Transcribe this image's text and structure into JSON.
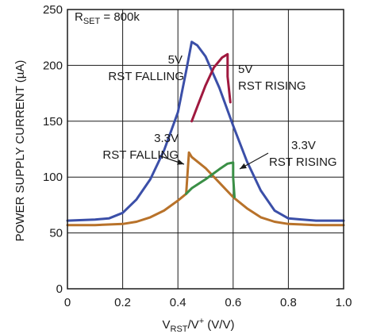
{
  "chart_data": {
    "type": "line",
    "xlabel": {
      "main": "V",
      "sub": "RST",
      "mid": "/V",
      "sup": "+",
      "tail": " (V/V)"
    },
    "ylabel": "POWER SUPPLY CURRENT (µA)",
    "xlim": [
      0,
      1.0
    ],
    "ylim": [
      0,
      250
    ],
    "x_ticks": [
      0,
      0.2,
      0.4,
      0.6,
      0.8,
      1.0
    ],
    "x_tick_labels": [
      "0",
      "0.2",
      "0.4",
      "0.6",
      "0.8",
      "1.0"
    ],
    "y_ticks": [
      0,
      50,
      100,
      150,
      200,
      250
    ],
    "y_tick_labels": [
      "0",
      "50",
      "100",
      "150",
      "200",
      "250"
    ],
    "grid": true,
    "annotations": {
      "rset": {
        "main": "R",
        "sub": "SET",
        "tail": " = 800k"
      },
      "v5_falling": [
        "5V",
        "RST FALLING"
      ],
      "v5_rising": [
        "5V",
        "RST RISING"
      ],
      "v33_falling": [
        "3.3V",
        "RST FALLING"
      ],
      "v33_rising": [
        "3.3V",
        "RST RISING"
      ]
    },
    "series": [
      {
        "color": "#3b4fa8",
        "x": [
          0,
          0.1,
          0.15,
          0.2,
          0.25,
          0.3,
          0.35,
          0.4,
          0.43,
          0.45,
          0.47,
          0.5,
          0.55,
          0.6,
          0.65,
          0.7,
          0.75,
          0.8,
          0.85,
          0.9,
          1.0
        ],
        "y": [
          61,
          62,
          63,
          68,
          80,
          98,
          124,
          158,
          195,
          221,
          218,
          208,
          180,
          146,
          114,
          88,
          70,
          63,
          62,
          61,
          61
        ]
      },
      {
        "color": "#a0193f",
        "x": [
          0.45,
          0.47,
          0.5,
          0.53,
          0.56,
          0.58,
          0.58,
          0.59
        ],
        "y": [
          150,
          163,
          182,
          198,
          207,
          210,
          190,
          167
        ]
      },
      {
        "color": "#b8722a",
        "x": [
          0,
          0.1,
          0.2,
          0.25,
          0.3,
          0.35,
          0.4,
          0.43,
          0.44,
          0.45,
          0.5,
          0.55,
          0.6,
          0.65,
          0.7,
          0.75,
          0.8,
          0.9,
          1.0
        ],
        "y": [
          57,
          57,
          58,
          60,
          64,
          70,
          79,
          85,
          122,
          118,
          108,
          95,
          82,
          72,
          64,
          60,
          58,
          57,
          57
        ]
      },
      {
        "color": "#3a8f46",
        "x": [
          0.43,
          0.45,
          0.5,
          0.55,
          0.58,
          0.6,
          0.6,
          0.605
        ],
        "y": [
          85,
          90,
          98,
          107,
          112,
          113,
          100,
          82
        ]
      }
    ]
  }
}
